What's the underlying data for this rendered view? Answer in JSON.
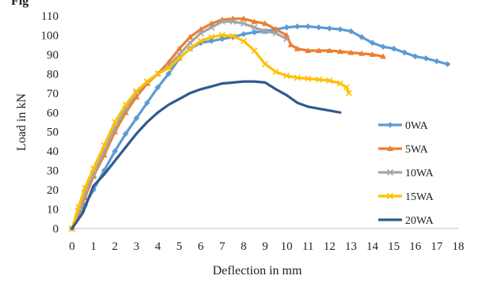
{
  "header": {
    "cut_text": "Fig"
  },
  "chart_data": {
    "type": "line",
    "title": "",
    "xlabel": "Deflection in mm",
    "ylabel": "Load in kN",
    "xlim": [
      0,
      18
    ],
    "ylim": [
      0,
      110
    ],
    "xticks": [
      0,
      1,
      2,
      3,
      4,
      5,
      6,
      7,
      8,
      9,
      10,
      11,
      12,
      13,
      14,
      15,
      16,
      17,
      18
    ],
    "yticks": [
      0,
      10,
      20,
      30,
      40,
      50,
      60,
      70,
      80,
      90,
      100,
      110
    ],
    "grid": false,
    "legend_position": "right",
    "series": [
      {
        "name": "0WA",
        "color": "#5B9BD5",
        "marker": "diamond",
        "x": [
          0,
          0.3,
          0.6,
          1,
          1.5,
          2,
          2.5,
          3,
          3.5,
          4,
          4.5,
          5,
          5.5,
          6,
          6.5,
          7,
          7.5,
          8,
          8.5,
          9,
          9.5,
          10,
          10.5,
          11,
          11.5,
          12,
          12.5,
          13,
          13.5,
          14,
          14.5,
          15,
          15.5,
          16,
          16.5,
          17,
          17.5
        ],
        "y": [
          0,
          6,
          12,
          20,
          30,
          40,
          49,
          57,
          65,
          73,
          80,
          88,
          93,
          96,
          97,
          98,
          99,
          100.5,
          101.5,
          102,
          103,
          104,
          104.5,
          104.5,
          104,
          103.5,
          103,
          102,
          99,
          96,
          94,
          93,
          91,
          89,
          88,
          86.5,
          85
        ]
      },
      {
        "name": "5WA",
        "color": "#ED7D31",
        "marker": "triangle",
        "x": [
          0,
          0.3,
          0.6,
          1,
          1.5,
          2,
          2.5,
          3,
          3.5,
          4,
          4.5,
          5,
          5.5,
          6,
          6.5,
          7,
          7.5,
          8,
          8.5,
          9,
          9.5,
          10,
          10.2,
          10.5,
          11,
          11.5,
          12,
          12.5,
          13,
          13.5,
          14,
          14.5
        ],
        "y": [
          0,
          8,
          16,
          27,
          38,
          50,
          60,
          68,
          75,
          80,
          86,
          93,
          99,
          103,
          106,
          108,
          108.5,
          108.5,
          107,
          106,
          103,
          100,
          95,
          93,
          92,
          92,
          92,
          91.5,
          91,
          90.5,
          90,
          89
        ]
      },
      {
        "name": "10WA",
        "color": "#A5A5A5",
        "marker": "x",
        "x": [
          0,
          0.3,
          0.6,
          1,
          1.5,
          2,
          2.5,
          3,
          3.5,
          4,
          4.5,
          5,
          5.5,
          6,
          6.5,
          7,
          7.5,
          8,
          8.5,
          9,
          9.5,
          10
        ],
        "y": [
          0,
          9,
          18,
          28,
          40,
          52,
          62,
          70,
          76,
          80,
          84,
          90,
          96,
          101,
          104,
          107,
          107,
          106,
          104,
          102,
          101,
          98
        ]
      },
      {
        "name": "15WA",
        "color": "#FFC000",
        "marker": "x",
        "x": [
          0,
          0.3,
          0.6,
          1,
          1.5,
          2,
          2.5,
          3,
          3.5,
          4,
          4.5,
          5,
          5.5,
          6,
          6.5,
          7,
          7.5,
          8,
          8.5,
          9,
          9.5,
          10,
          10.5,
          11,
          11.5,
          12,
          12.5,
          12.8,
          12.9
        ],
        "y": [
          0,
          11,
          21,
          31,
          43,
          55,
          64,
          71,
          76,
          80,
          83,
          88,
          93,
          97,
          99,
          100,
          99.5,
          97,
          92,
          85,
          81,
          79,
          78,
          77.5,
          77,
          76.5,
          75,
          73,
          70
        ]
      },
      {
        "name": "20WA",
        "color": "#2E5B8E",
        "marker": "none",
        "x": [
          0,
          0.5,
          1,
          1.5,
          2,
          2.5,
          3,
          3.5,
          4,
          4.5,
          5,
          5.5,
          6,
          6.5,
          7,
          7.5,
          8,
          8.5,
          9,
          9.5,
          10,
          10.5,
          11,
          11.5,
          12,
          12.5
        ],
        "y": [
          0,
          8,
          22,
          28,
          35,
          42,
          49,
          55,
          60,
          64,
          67,
          70,
          72,
          73.5,
          75,
          75.5,
          76,
          76,
          75.5,
          72,
          69,
          65,
          63,
          62,
          61,
          60
        ]
      }
    ]
  }
}
